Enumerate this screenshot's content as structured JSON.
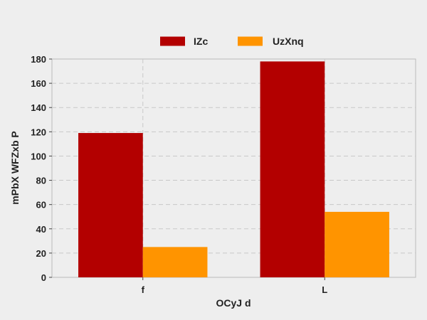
{
  "chart_data": {
    "type": "bar",
    "categories": [
      "f",
      "L"
    ],
    "series": [
      {
        "name": "IZc",
        "values": [
          119,
          178
        ],
        "color": "#b30000"
      },
      {
        "name": "UzXnq",
        "values": [
          25,
          54
        ],
        "color": "#ff9400"
      }
    ],
    "xlabel": "OCyJ d",
    "ylabel": "mPbX WFZxb  P",
    "ylim": [
      0,
      180
    ],
    "yticks": [
      0,
      20,
      40,
      60,
      80,
      100,
      120,
      140,
      160,
      180
    ],
    "grid": true,
    "legend_position": "top-center"
  }
}
